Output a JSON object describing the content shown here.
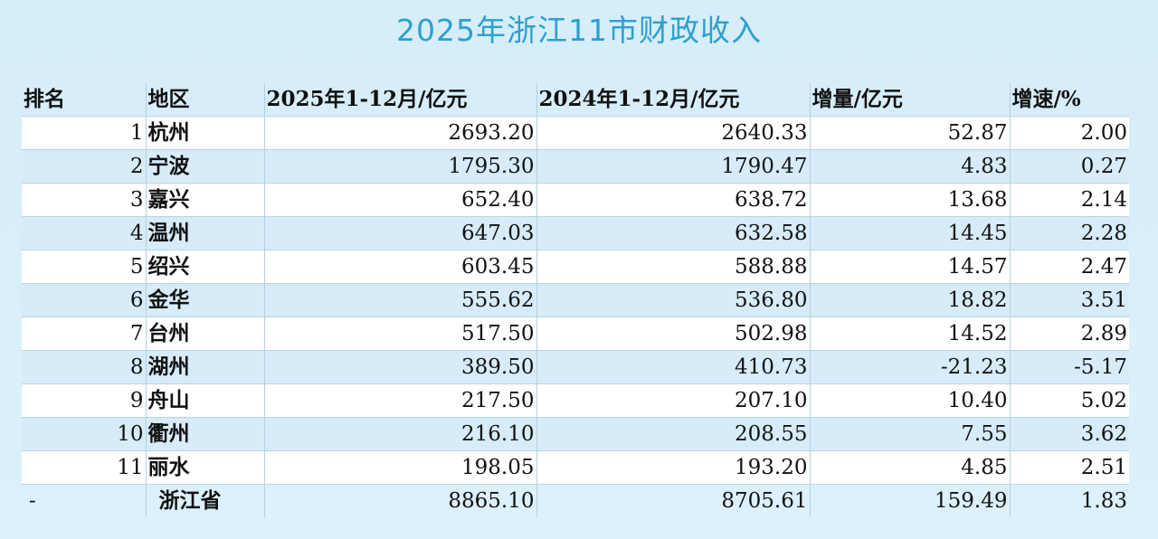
{
  "title": "2025年浙江11市财政收入",
  "table": {
    "headers": {
      "rank": "排名",
      "region": "地区",
      "revenue_2025": "2025年1-12月/亿元",
      "revenue_2024": "2024年1-12月/亿元",
      "increase": "增量/亿元",
      "growth": "增速/%"
    },
    "rows": [
      {
        "rank": "1",
        "region": "杭州",
        "revenue_2025": "2693.20",
        "revenue_2024": "2640.33",
        "increase": "52.87",
        "growth": "2.00"
      },
      {
        "rank": "2",
        "region": "宁波",
        "revenue_2025": "1795.30",
        "revenue_2024": "1790.47",
        "increase": "4.83",
        "growth": "0.27"
      },
      {
        "rank": "3",
        "region": "嘉兴",
        "revenue_2025": "652.40",
        "revenue_2024": "638.72",
        "increase": "13.68",
        "growth": "2.14"
      },
      {
        "rank": "4",
        "region": "温州",
        "revenue_2025": "647.03",
        "revenue_2024": "632.58",
        "increase": "14.45",
        "growth": "2.28"
      },
      {
        "rank": "5",
        "region": "绍兴",
        "revenue_2025": "603.45",
        "revenue_2024": "588.88",
        "increase": "14.57",
        "growth": "2.47"
      },
      {
        "rank": "6",
        "region": "金华",
        "revenue_2025": "555.62",
        "revenue_2024": "536.80",
        "increase": "18.82",
        "growth": "3.51"
      },
      {
        "rank": "7",
        "region": "台州",
        "revenue_2025": "517.50",
        "revenue_2024": "502.98",
        "increase": "14.52",
        "growth": "2.89"
      },
      {
        "rank": "8",
        "region": "湖州",
        "revenue_2025": "389.50",
        "revenue_2024": "410.73",
        "increase": "-21.23",
        "growth": "-5.17"
      },
      {
        "rank": "9",
        "region": "舟山",
        "revenue_2025": "217.50",
        "revenue_2024": "207.10",
        "increase": "10.40",
        "growth": "5.02"
      },
      {
        "rank": "10",
        "region": "衢州",
        "revenue_2025": "216.10",
        "revenue_2024": "208.55",
        "increase": "7.55",
        "growth": "3.62"
      },
      {
        "rank": "11",
        "region": "丽水",
        "revenue_2025": "198.05",
        "revenue_2024": "193.20",
        "increase": "4.85",
        "growth": "2.51"
      }
    ],
    "total": {
      "rank": "-",
      "region": "浙江省",
      "revenue_2025": "8865.10",
      "revenue_2024": "8705.61",
      "increase": "159.49",
      "growth": "1.83"
    }
  },
  "colors": {
    "title": "#2d9fd0",
    "background": "#d8eefa",
    "row_white": "#ffffff",
    "row_blue": "#d7ecf8"
  }
}
